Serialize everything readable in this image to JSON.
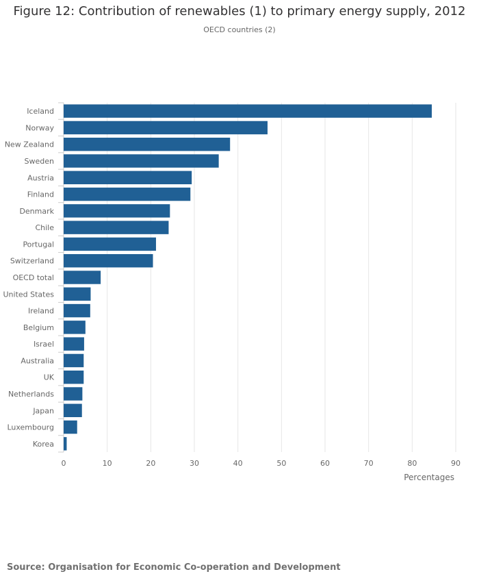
{
  "chart_data": {
    "type": "bar",
    "orientation": "horizontal",
    "title": "Figure 12: Contribution of renewables (1) to primary energy supply, 2012",
    "subtitle": "OECD countries (2)",
    "xlabel": "Percentages",
    "categories": [
      "Iceland",
      "Norway",
      "New Zealand",
      "Sweden",
      "Austria",
      "Finland",
      "Denmark",
      "Chile",
      "Portugal",
      "Switzerland",
      "OECD total",
      "United States",
      "Ireland",
      "Belgium",
      "Israel",
      "Australia",
      "UK",
      "Netherlands",
      "Japan",
      "Luxembourg",
      "Korea"
    ],
    "values": [
      84.5,
      46.8,
      38.2,
      35.6,
      29.4,
      29.1,
      24.4,
      24.1,
      21.2,
      20.5,
      8.5,
      6.2,
      6.1,
      5.0,
      4.7,
      4.6,
      4.6,
      4.3,
      4.2,
      3.1,
      0.7
    ],
    "xlim": [
      0,
      90
    ],
    "xticks": [
      "0",
      "10",
      "20",
      "30",
      "40",
      "50",
      "60",
      "70",
      "80",
      "90"
    ],
    "grid": true,
    "bar_color": "#206095",
    "grid_color": "#e6e6e6"
  },
  "footer": {
    "source": "Source: Organisation for Economic Co-operation and Development"
  }
}
